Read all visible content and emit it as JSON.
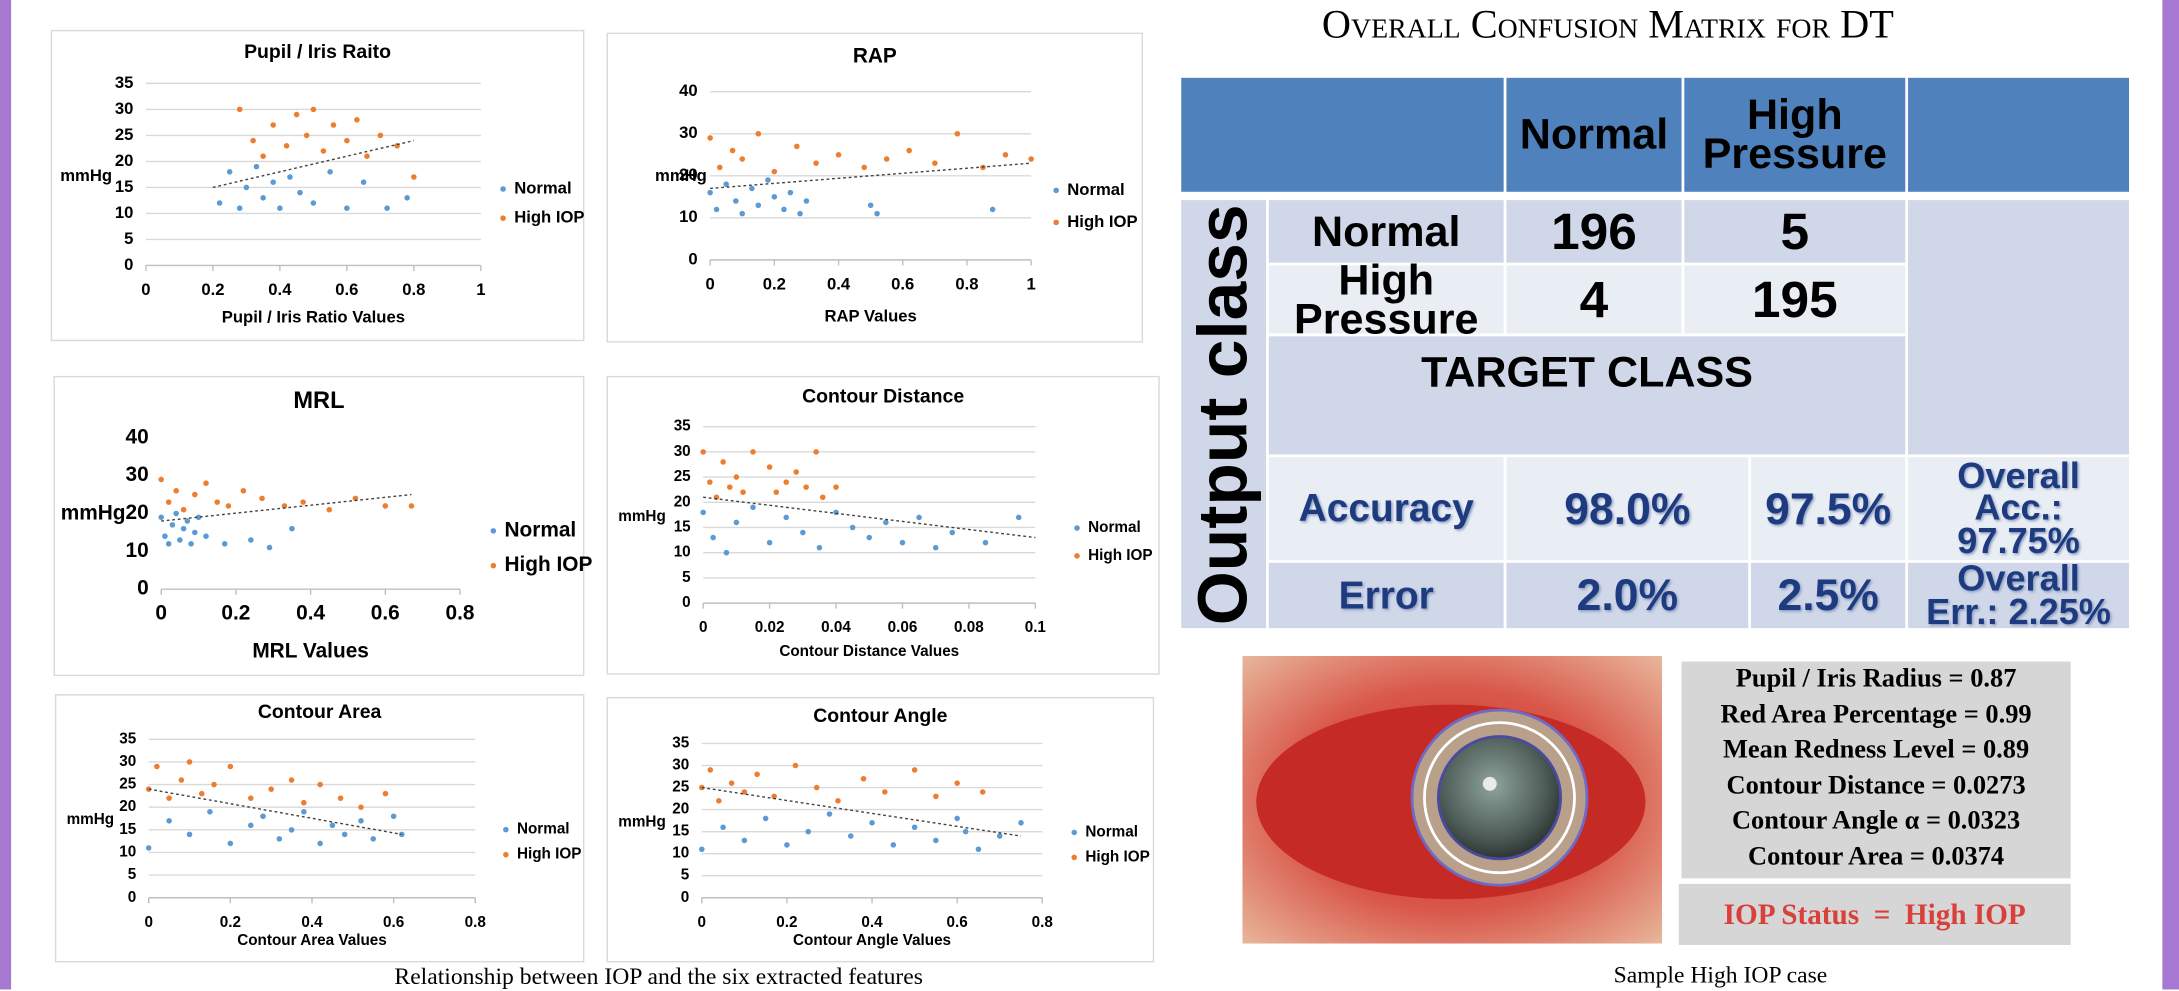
{
  "chart_data": [
    {
      "type": "scatter",
      "title": "Pupil / Iris Raito",
      "xlabel": "Pupil / Iris Ratio Values",
      "ylabel": "mmHg",
      "xlim": [
        0,
        1
      ],
      "xticks": [
        0,
        0.2,
        0.4,
        0.6,
        0.8,
        1
      ],
      "ylim": [
        0,
        35
      ],
      "yticks": [
        0,
        5,
        10,
        15,
        20,
        25,
        30,
        35
      ],
      "grid": true,
      "legend": "right",
      "series": [
        {
          "name": "Normal",
          "color": "#5b9bd5",
          "x": [
            0.22,
            0.25,
            0.28,
            0.3,
            0.33,
            0.35,
            0.38,
            0.4,
            0.43,
            0.46,
            0.5,
            0.55,
            0.6,
            0.65,
            0.72,
            0.78
          ],
          "values": [
            12,
            18,
            11,
            15,
            19,
            13,
            16,
            11,
            17,
            14,
            12,
            18,
            11,
            16,
            11,
            13
          ]
        },
        {
          "name": "High IOP",
          "color": "#ed7d31",
          "x": [
            0.28,
            0.32,
            0.35,
            0.38,
            0.42,
            0.45,
            0.48,
            0.5,
            0.53,
            0.56,
            0.6,
            0.63,
            0.66,
            0.7,
            0.75,
            0.8
          ],
          "values": [
            30,
            24,
            21,
            27,
            23,
            29,
            25,
            30,
            22,
            27,
            24,
            28,
            21,
            25,
            23,
            17
          ]
        }
      ],
      "trendline": {
        "x": [
          0.2,
          0.8
        ],
        "y": [
          15,
          24
        ]
      }
    },
    {
      "type": "scatter",
      "title": "RAP",
      "xlabel": "RAP Values",
      "ylabel": "mmHg",
      "xlim": [
        0,
        1
      ],
      "xticks": [
        0,
        0.2,
        0.4,
        0.6,
        0.8,
        1
      ],
      "ylim": [
        0,
        40
      ],
      "yticks": [
        0,
        10,
        20,
        30,
        40
      ],
      "grid": true,
      "legend": "right",
      "series": [
        {
          "name": "Normal",
          "color": "#5b9bd5",
          "x": [
            0,
            0.02,
            0.05,
            0.08,
            0.1,
            0.13,
            0.15,
            0.18,
            0.2,
            0.23,
            0.25,
            0.28,
            0.3,
            0.5,
            0.52,
            0.88
          ],
          "values": [
            16,
            12,
            18,
            14,
            11,
            17,
            13,
            19,
            15,
            12,
            16,
            11,
            14,
            13,
            11,
            12
          ]
        },
        {
          "name": "High IOP",
          "color": "#ed7d31",
          "x": [
            0,
            0.03,
            0.07,
            0.1,
            0.15,
            0.2,
            0.27,
            0.33,
            0.4,
            0.48,
            0.55,
            0.62,
            0.7,
            0.77,
            0.85,
            0.92,
            1
          ],
          "values": [
            29,
            22,
            26,
            24,
            30,
            21,
            27,
            23,
            25,
            22,
            24,
            26,
            23,
            30,
            22,
            25,
            24
          ]
        }
      ],
      "trendline": {
        "x": [
          0,
          1
        ],
        "y": [
          17,
          23
        ]
      }
    },
    {
      "type": "scatter",
      "title": "MRL",
      "xlabel": "MRL Values",
      "ylabel": "mmHg",
      "xlim": [
        0,
        0.8
      ],
      "xticks": [
        0,
        0.2,
        0.4,
        0.6,
        0.8
      ],
      "ylim": [
        0,
        40
      ],
      "yticks": [
        0,
        10,
        20,
        30,
        40
      ],
      "grid": false,
      "legend": "right",
      "series": [
        {
          "name": "Normal",
          "color": "#5b9bd5",
          "x": [
            0,
            0.01,
            0.02,
            0.03,
            0.04,
            0.05,
            0.06,
            0.07,
            0.08,
            0.09,
            0.1,
            0.12,
            0.17,
            0.24,
            0.29,
            0.35
          ],
          "values": [
            19,
            14,
            12,
            17,
            20,
            13,
            16,
            18,
            12,
            15,
            19,
            14,
            12,
            13,
            11,
            16
          ]
        },
        {
          "name": "High IOP",
          "color": "#ed7d31",
          "x": [
            0,
            0.02,
            0.04,
            0.06,
            0.09,
            0.12,
            0.15,
            0.18,
            0.22,
            0.27,
            0.33,
            0.38,
            0.45,
            0.52,
            0.6,
            0.67
          ],
          "values": [
            29,
            23,
            26,
            21,
            25,
            28,
            23,
            22,
            26,
            24,
            22,
            23,
            21,
            24,
            22,
            22
          ]
        }
      ],
      "trendline": {
        "x": [
          0,
          0.67
        ],
        "y": [
          18,
          25
        ]
      }
    },
    {
      "type": "scatter",
      "title": "Contour Distance",
      "xlabel": "Contour Distance Values",
      "ylabel": "mmHg",
      "xlim": [
        0,
        0.1
      ],
      "xticks": [
        0,
        0.02,
        0.04,
        0.06,
        0.08,
        0.1
      ],
      "ylim": [
        0,
        35
      ],
      "yticks": [
        0,
        5,
        10,
        15,
        20,
        25,
        30,
        35
      ],
      "grid": true,
      "legend": "right",
      "series": [
        {
          "name": "Normal",
          "color": "#5b9bd5",
          "x": [
            0,
            0.003,
            0.007,
            0.01,
            0.015,
            0.02,
            0.025,
            0.03,
            0.035,
            0.04,
            0.045,
            0.05,
            0.055,
            0.06,
            0.065,
            0.07,
            0.075,
            0.085,
            0.095
          ],
          "values": [
            18,
            13,
            10,
            16,
            19,
            12,
            17,
            14,
            11,
            18,
            15,
            13,
            16,
            12,
            17,
            11,
            14,
            12,
            17
          ]
        },
        {
          "name": "High IOP",
          "color": "#ed7d31",
          "x": [
            0,
            0.002,
            0.004,
            0.006,
            0.008,
            0.01,
            0.012,
            0.015,
            0.02,
            0.022,
            0.025,
            0.028,
            0.031,
            0.034,
            0.036,
            0.04
          ],
          "values": [
            30,
            24,
            21,
            28,
            23,
            25,
            22,
            30,
            27,
            22,
            24,
            26,
            23,
            30,
            21,
            23
          ]
        }
      ],
      "trendline": {
        "x": [
          0,
          0.1
        ],
        "y": [
          21,
          13
        ]
      }
    },
    {
      "type": "scatter",
      "title": "Contour Area",
      "xlabel": "Contour Area Values",
      "ylabel": "mmHg",
      "xlim": [
        0,
        0.8
      ],
      "xticks": [
        0,
        0.2,
        0.4,
        0.6,
        0.8
      ],
      "ylim": [
        0,
        35
      ],
      "yticks": [
        0,
        5,
        10,
        15,
        20,
        25,
        30,
        35
      ],
      "grid": true,
      "legend": "right",
      "series": [
        {
          "name": "Normal",
          "color": "#5b9bd5",
          "x": [
            0,
            0.05,
            0.1,
            0.15,
            0.2,
            0.25,
            0.28,
            0.32,
            0.35,
            0.38,
            0.42,
            0.45,
            0.48,
            0.52,
            0.55,
            0.6,
            0.62
          ],
          "values": [
            11,
            17,
            14,
            19,
            12,
            16,
            18,
            13,
            15,
            19,
            12,
            16,
            14,
            17,
            13,
            18,
            14
          ]
        },
        {
          "name": "High IOP",
          "color": "#ed7d31",
          "x": [
            0,
            0.02,
            0.05,
            0.08,
            0.1,
            0.13,
            0.16,
            0.2,
            0.25,
            0.3,
            0.35,
            0.38,
            0.42,
            0.47,
            0.52,
            0.58
          ],
          "values": [
            24,
            29,
            22,
            26,
            30,
            23,
            25,
            29,
            22,
            24,
            26,
            21,
            25,
            22,
            20,
            23
          ]
        }
      ],
      "trendline": {
        "x": [
          0,
          0.62
        ],
        "y": [
          24,
          14
        ]
      }
    },
    {
      "type": "scatter",
      "title": "Contour Angle",
      "xlabel": "Contour Angle Values",
      "ylabel": "mmHg",
      "xlim": [
        0,
        0.8
      ],
      "xticks": [
        0,
        0.2,
        0.4,
        0.6,
        0.8
      ],
      "ylim": [
        0,
        35
      ],
      "yticks": [
        0,
        5,
        10,
        15,
        20,
        25,
        30,
        35
      ],
      "grid": true,
      "legend": "right",
      "series": [
        {
          "name": "Normal",
          "color": "#5b9bd5",
          "x": [
            0,
            0.05,
            0.1,
            0.15,
            0.2,
            0.25,
            0.3,
            0.35,
            0.4,
            0.45,
            0.5,
            0.55,
            0.6,
            0.62,
            0.65,
            0.7,
            0.75
          ],
          "values": [
            11,
            16,
            13,
            18,
            12,
            15,
            19,
            14,
            17,
            12,
            16,
            13,
            18,
            15,
            11,
            14,
            17
          ]
        },
        {
          "name": "High IOP",
          "color": "#ed7d31",
          "x": [
            0,
            0.02,
            0.04,
            0.07,
            0.1,
            0.13,
            0.17,
            0.22,
            0.27,
            0.32,
            0.38,
            0.43,
            0.5,
            0.55,
            0.6,
            0.66
          ],
          "values": [
            25,
            29,
            22,
            26,
            24,
            28,
            23,
            30,
            25,
            22,
            27,
            24,
            29,
            23,
            26,
            24
          ]
        }
      ],
      "trendline": {
        "x": [
          0,
          0.75
        ],
        "y": [
          25,
          14
        ]
      }
    }
  ],
  "left_caption": "Relationship between IOP and the six extracted features",
  "matrix": {
    "title": "Overall Confusion Matrix for DT",
    "header": [
      "Normal",
      "High Pressure"
    ],
    "side_label": "Output class",
    "rows": [
      [
        "Normal",
        "196",
        "5"
      ],
      [
        "High Pressure",
        "4",
        "195"
      ]
    ],
    "target": "TARGET CLASS",
    "accuracy": [
      "Accuracy",
      "98.0%",
      "97.5%",
      "Overall Acc.: 97.75%"
    ],
    "error": [
      "Error",
      "2.0%",
      "2.5%",
      "Overall Err.: 2.25%"
    ]
  },
  "sample": {
    "lines": [
      "Pupil / Iris Radius = 0.87",
      "Red Area Percentage = 0.99",
      "Mean Redness Level = 0.89",
      "Contour Distance = 0.0273",
      "Contour Angle α = 0.0323",
      "Contour Area = 0.0374"
    ],
    "status": "IOP Status  =  High IOP",
    "caption": "Sample High IOP case"
  }
}
